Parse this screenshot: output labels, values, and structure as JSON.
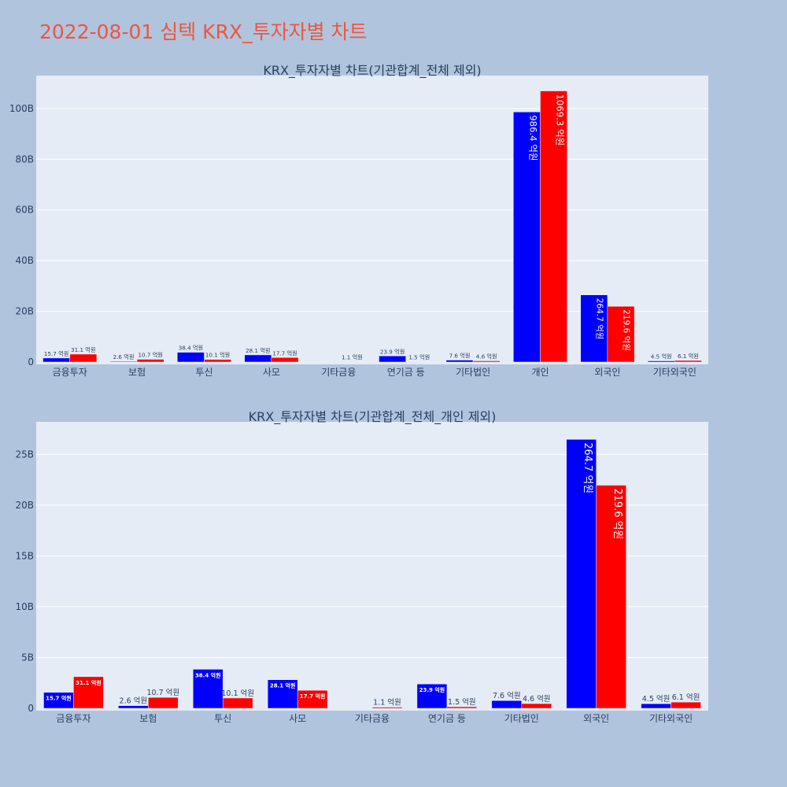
{
  "title": "2022-08-01 심텍 KRX_투자자별 차트",
  "colors": {
    "background": "#b0c4de",
    "plot_bg": "#e5ecf6",
    "grid": "#ffffff",
    "title": "#ef553b",
    "text": "#2a3f5f",
    "series_a": "#0000ff",
    "series_b": "#ff0000"
  },
  "chart_data": [
    {
      "type": "bar",
      "title": "KRX_투자자별 차트(기관합계_전체 제외)",
      "categories": [
        "금융투자",
        "보험",
        "투신",
        "사모",
        "기타금융",
        "연기금 등",
        "기타법인",
        "개인",
        "외국인",
        "기타외국인"
      ],
      "series": [
        {
          "color": "#0000ff",
          "values": [
            1570000000,
            260000000,
            3840000000,
            2810000000,
            0,
            2390000000,
            760000000,
            98640000000,
            26470000000,
            450000000
          ],
          "labels": [
            "15.7 억원",
            "2.6 억원",
            "38.4 억원",
            "28.1 억원",
            "",
            "23.9 억원",
            "7.6 억원",
            "986.4 억원",
            "264.7 억원",
            "4.5 억원"
          ]
        },
        {
          "color": "#ff0000",
          "values": [
            3110000000,
            1070000000,
            1010000000,
            1770000000,
            110000000,
            150000000,
            460000000,
            106930000000,
            21960000000,
            610000000
          ],
          "labels": [
            "31.1 억원",
            "10.7 억원",
            "10.1 억원",
            "17.7 억원",
            "1.1 억원",
            "1.5 억원",
            "4.6 억원",
            "1069.3 억원",
            "219.6 억원",
            "6.1 억원"
          ]
        }
      ],
      "ylim": [
        0,
        113000000000
      ],
      "yticks": [
        0,
        20000000000,
        40000000000,
        60000000000,
        80000000000,
        100000000000
      ],
      "ytick_labels": [
        "0",
        "20B",
        "40B",
        "60B",
        "80B",
        "100B"
      ],
      "grid": true
    },
    {
      "type": "bar",
      "title": "KRX_투자자별 차트(기관합계_전체_개인 제외)",
      "categories": [
        "금융투자",
        "보험",
        "투신",
        "사모",
        "기타금융",
        "연기금 등",
        "기타법인",
        "외국인",
        "기타외국인"
      ],
      "series": [
        {
          "color": "#0000ff",
          "values": [
            1570000000,
            260000000,
            3840000000,
            2810000000,
            0,
            2390000000,
            760000000,
            26470000000,
            450000000
          ],
          "labels": [
            "15.7 억원",
            "2.6 억원",
            "38.4 억원",
            "28.1 억원",
            "",
            "23.9 억원",
            "7.6 억원",
            "264.7 억원",
            "4.5 억원"
          ]
        },
        {
          "color": "#ff0000",
          "values": [
            3110000000,
            1070000000,
            1010000000,
            1770000000,
            110000000,
            150000000,
            460000000,
            21960000000,
            610000000
          ],
          "labels": [
            "31.1 억원",
            "10.7 억원",
            "10.1 억원",
            "17.7 억원",
            "1.1 억원",
            "1.5 억원",
            "4.6 억원",
            "219.6 억원",
            "6.1 억원"
          ]
        }
      ],
      "ylim": [
        0,
        28200000000
      ],
      "yticks": [
        0,
        5000000000,
        10000000000,
        15000000000,
        20000000000,
        25000000000
      ],
      "ytick_labels": [
        "0",
        "5B",
        "10B",
        "15B",
        "20B",
        "25B"
      ],
      "grid": true
    }
  ]
}
